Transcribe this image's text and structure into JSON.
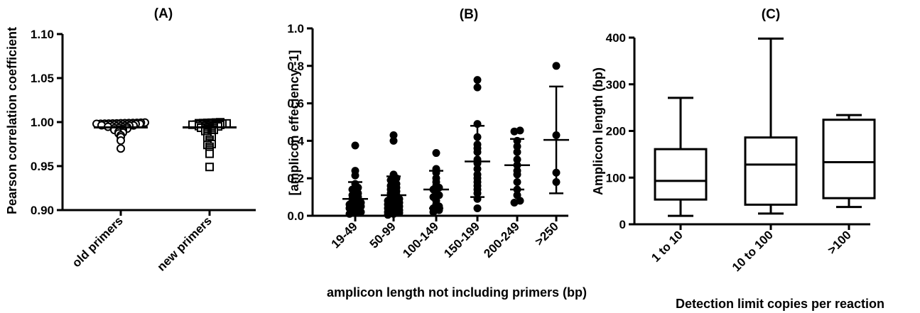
{
  "chart_data": [
    {
      "type": "scatter",
      "title": "(A)",
      "ylabel": "Pearson correlation coefficient",
      "xlabel": "",
      "ylim": [
        0.9,
        1.1
      ],
      "yticks": [
        "0.90",
        "0.95",
        "1.00",
        "1.05",
        "1.10"
      ],
      "categories": [
        "old primers",
        "new primers"
      ],
      "series": [
        {
          "marker": "circle",
          "mean": 0.994,
          "values": [
            0.9995,
            0.9993,
            0.9991,
            0.999,
            0.9989,
            0.9988,
            0.9987,
            0.9985,
            0.9984,
            0.9983,
            0.9982,
            0.9981,
            0.998,
            0.9979,
            0.9978,
            0.9976,
            0.9975,
            0.9974,
            0.9972,
            0.997,
            0.9968,
            0.9966,
            0.9964,
            0.9962,
            0.996,
            0.9958,
            0.9955,
            0.9953,
            0.995,
            0.9947,
            0.9944,
            0.994,
            0.9935,
            0.993,
            0.9925,
            0.992,
            0.9915,
            0.991,
            0.99,
            0.989,
            0.988,
            0.987,
            0.985,
            0.983,
            0.979,
            0.97
          ]
        },
        {
          "marker": "square",
          "mean": 0.994,
          "values": [
            0.9998,
            0.9995,
            0.9993,
            0.9991,
            0.9989,
            0.9987,
            0.9985,
            0.9983,
            0.9981,
            0.998,
            0.9978,
            0.9976,
            0.9974,
            0.9972,
            0.997,
            0.9968,
            0.9965,
            0.9962,
            0.996,
            0.9957,
            0.9954,
            0.9951,
            0.9948,
            0.9944,
            0.994,
            0.9935,
            0.993,
            0.9924,
            0.9918,
            0.9912,
            0.9905,
            0.9898,
            0.989,
            0.988,
            0.987,
            0.986,
            0.985,
            0.984,
            0.983,
            0.982,
            0.98,
            0.978,
            0.976,
            0.975,
            0.974,
            0.972,
            0.97,
            0.968,
            0.966,
            0.964,
            0.949
          ]
        }
      ]
    },
    {
      "type": "scatter",
      "title": "(B)",
      "ylabel": "[amplicon effeciency -1]",
      "xlabel": "amplicon length not including primers (bp)",
      "ylim": [
        0.0,
        1.0
      ],
      "yticks": [
        "0.0",
        "0.2",
        "0.4",
        "0.6",
        "0.8",
        "1.0"
      ],
      "categories": [
        "19-49",
        "50-99",
        "100-149",
        "150-199",
        "200-249",
        ">250"
      ],
      "series": [
        {
          "mean": 0.09,
          "sd_low": 0.02,
          "sd_high": 0.18,
          "values": [
            0.375,
            0.24,
            0.215,
            0.17,
            0.15,
            0.14,
            0.12,
            0.11,
            0.1,
            0.09,
            0.08,
            0.075,
            0.07,
            0.065,
            0.06,
            0.05,
            0.045,
            0.04,
            0.03,
            0.025,
            0.02,
            0.015,
            0.01
          ]
        },
        {
          "mean": 0.11,
          "sd_low": 0.01,
          "sd_high": 0.21,
          "values": [
            0.43,
            0.4,
            0.22,
            0.2,
            0.19,
            0.17,
            0.16,
            0.15,
            0.14,
            0.13,
            0.12,
            0.11,
            0.1,
            0.09,
            0.085,
            0.08,
            0.07,
            0.065,
            0.06,
            0.05,
            0.045,
            0.04,
            0.03,
            0.025,
            0.02,
            0.015,
            0.01,
            0.005
          ]
        },
        {
          "mean": 0.14,
          "sd_low": 0.04,
          "sd_high": 0.24,
          "values": [
            0.335,
            0.25,
            0.23,
            0.2,
            0.18,
            0.16,
            0.15,
            0.14,
            0.12,
            0.11,
            0.1,
            0.08,
            0.06,
            0.05,
            0.04,
            0.03,
            0.02
          ]
        },
        {
          "mean": 0.29,
          "sd_low": 0.1,
          "sd_high": 0.48,
          "values": [
            0.725,
            0.685,
            0.49,
            0.42,
            0.38,
            0.36,
            0.34,
            0.3,
            0.28,
            0.25,
            0.22,
            0.2,
            0.18,
            0.16,
            0.14,
            0.12,
            0.09,
            0.04
          ]
        },
        {
          "mean": 0.27,
          "sd_low": 0.14,
          "sd_high": 0.41,
          "values": [
            0.455,
            0.45,
            0.4,
            0.37,
            0.34,
            0.3,
            0.27,
            0.24,
            0.22,
            0.18,
            0.14,
            0.11,
            0.08,
            0.07
          ]
        },
        {
          "mean": 0.405,
          "sd_low": 0.12,
          "sd_high": 0.69,
          "values": [
            0.8,
            0.43,
            0.23,
            0.18
          ]
        }
      ]
    },
    {
      "type": "box",
      "title": "(C)",
      "ylabel": "Amplicon length (bp)",
      "xlabel": "Detection limit  copies per reaction",
      "ylim": [
        0,
        400
      ],
      "yticks": [
        "0",
        "100",
        "200",
        "300",
        "400"
      ],
      "categories": [
        "1 to 10",
        "10 to 100",
        ">100"
      ],
      "boxes": [
        {
          "min": 18,
          "q1": 53,
          "median": 93,
          "q3": 161,
          "max": 271
        },
        {
          "min": 23,
          "q1": 42,
          "median": 128,
          "q3": 186,
          "max": 398
        },
        {
          "min": 37,
          "q1": 56,
          "median": 133,
          "q3": 224,
          "max": 234
        }
      ]
    }
  ]
}
